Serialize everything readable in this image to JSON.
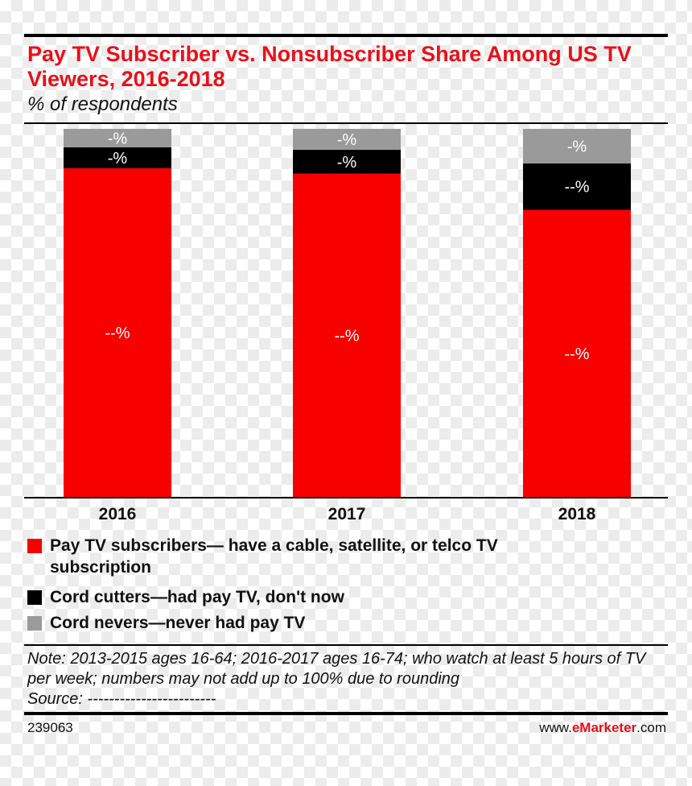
{
  "header": {
    "title": "Pay TV Subscriber vs. Nonsubscriber Share Among US TV Viewers, 2016-2018",
    "subtitle": "% of respondents"
  },
  "colors": {
    "pay_tv": "#f80000",
    "cord_cutters": "#000000",
    "cord_nevers": "#9a9a9a",
    "accent": "#e8101a"
  },
  "chart_data": {
    "type": "bar",
    "stacked": true,
    "title": "Pay TV Subscriber vs. Nonsubscriber Share Among US TV Viewers, 2016-2018",
    "ylabel": "% of respondents",
    "xlabel": "",
    "categories": [
      "2016",
      "2017",
      "2018"
    ],
    "ylim": [
      0,
      100
    ],
    "series": [
      {
        "name": "Pay TV subscribers— have a cable, satellite, or telco TV subscription",
        "values": [
          89.3,
          87.8,
          78.0
        ],
        "labels": [
          "--%",
          "--%",
          "--%"
        ]
      },
      {
        "name": "Cord cutters—had pay TV, don't now",
        "values": [
          5.7,
          6.5,
          12.6
        ],
        "labels": [
          "-%",
          "-%",
          "--%"
        ]
      },
      {
        "name": "Cord nevers—never had pay TV",
        "values": [
          5.0,
          5.7,
          9.4
        ],
        "labels": [
          "-%",
          "-%",
          "-%"
        ]
      }
    ]
  },
  "legend": {
    "items": [
      {
        "label": "Pay TV subscribers— have a cable, satellite, or telco TV subscription"
      },
      {
        "label": "Cord cutters—had pay TV, don't now"
      },
      {
        "label": "Cord nevers—never had pay TV"
      }
    ]
  },
  "footer": {
    "note": "Note: 2013-2015 ages 16-64; 2016-2017 ages 16-74; who watch at least 5 hours of TV per week; numbers may not add up to 100% due to rounding",
    "source": "Source: ------------------------",
    "chart_id": "239063",
    "brand_prefix": "www.",
    "brand_name": "eMarketer",
    "brand_suffix": ".com"
  }
}
